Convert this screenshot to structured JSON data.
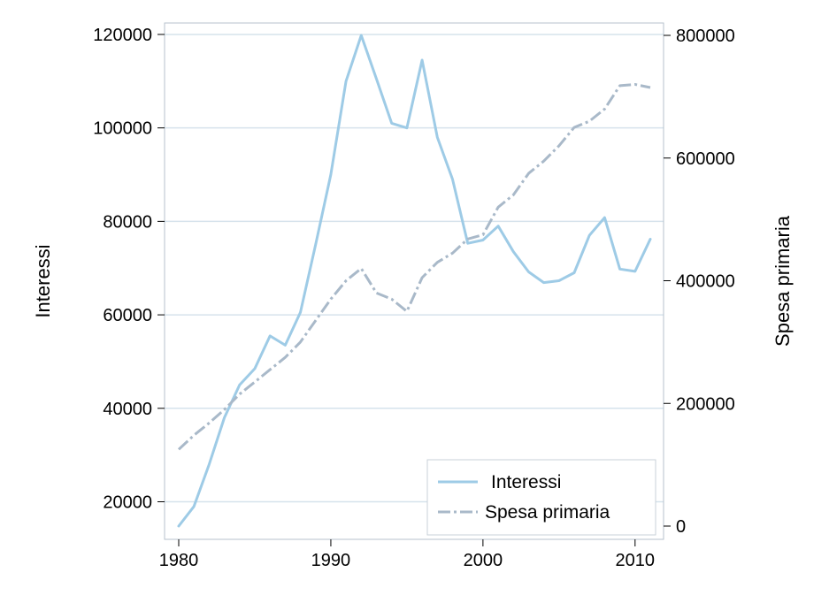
{
  "chart_data": {
    "type": "line",
    "x": [
      1980,
      1981,
      1982,
      1983,
      1984,
      1985,
      1986,
      1987,
      1988,
      1989,
      1990,
      1991,
      1992,
      1993,
      1994,
      1995,
      1996,
      1997,
      1998,
      1999,
      2000,
      2001,
      2002,
      2003,
      2004,
      2005,
      2006,
      2007,
      2008,
      2009,
      2010,
      2011
    ],
    "series": [
      {
        "name": "Interessi",
        "axis": "left",
        "style": "solid",
        "color": "#9ecbe6",
        "values": [
          14800,
          19000,
          28000,
          38000,
          45000,
          48500,
          55500,
          53500,
          60500,
          75000,
          90000,
          110000,
          119800,
          110500,
          101000,
          100000,
          114500,
          98000,
          89000,
          75300,
          76000,
          79000,
          73500,
          69200,
          66900,
          67300,
          69000,
          77000,
          80800,
          69800,
          69300,
          76200
        ]
      },
      {
        "name": "Spesa primaria",
        "axis": "right",
        "style": "dashdot",
        "color": "#a9b9c9",
        "values": [
          125000,
          148000,
          168000,
          190000,
          215000,
          235000,
          255000,
          275000,
          300000,
          335000,
          370000,
          400000,
          420000,
          380000,
          370000,
          350000,
          405000,
          430000,
          445000,
          468000,
          475000,
          520000,
          540000,
          575000,
          595000,
          620000,
          650000,
          660000,
          680000,
          718000,
          720000,
          715000
        ]
      }
    ],
    "xticks": [
      "1980",
      "1990",
      "2000",
      "2010"
    ],
    "yticks_left": [
      "20000",
      "40000",
      "60000",
      "80000",
      "100000",
      "120000"
    ],
    "yticks_right": [
      "0",
      "200000",
      "400000",
      "600000",
      "800000"
    ],
    "xlim": [
      1980,
      2011
    ],
    "ylim_left": [
      14800,
      119800
    ],
    "ylim_right": [
      0,
      800000
    ],
    "ylabel_left": "Interessi",
    "ylabel_right": "Spesa primaria",
    "xlabel": "",
    "grid": true,
    "legend_position": "bottom-right"
  }
}
